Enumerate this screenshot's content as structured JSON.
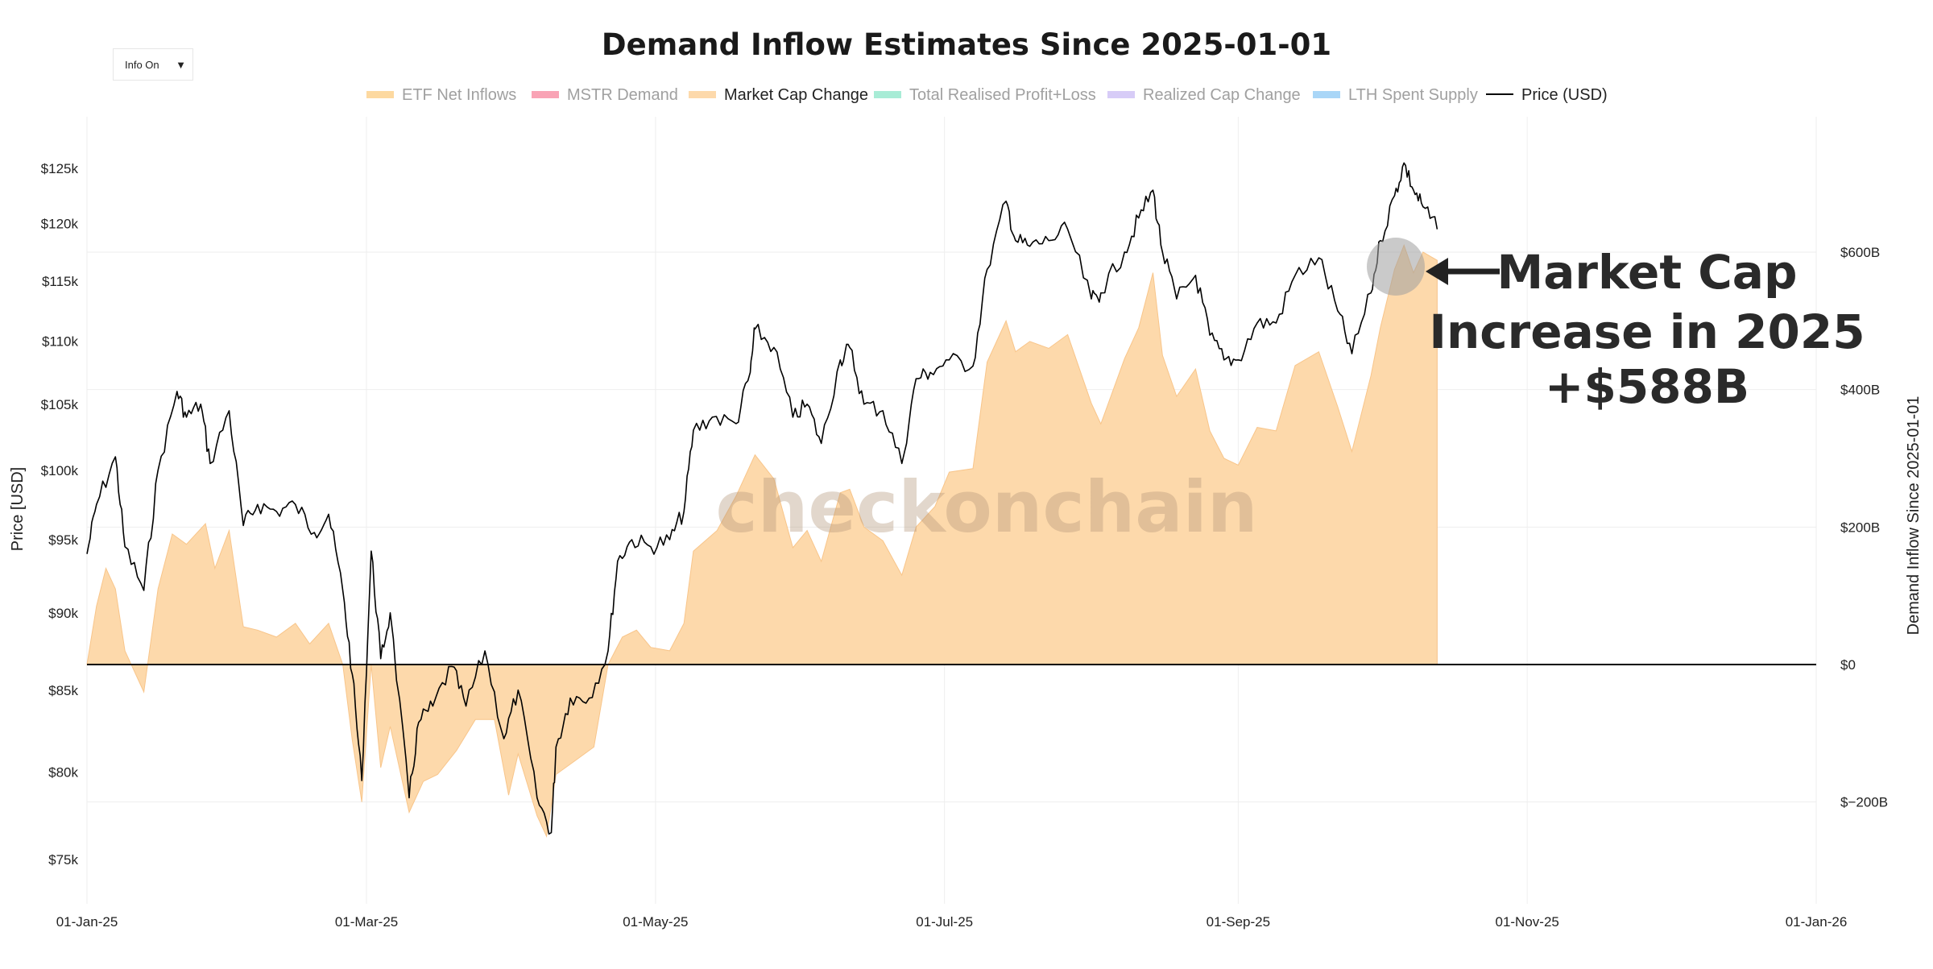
{
  "controls": {
    "info_toggle": "Info On",
    "caret": "▼"
  },
  "annotation": {
    "lines": [
      "Market Cap",
      "Increase in 2025",
      "+$588B"
    ]
  },
  "watermark": "checkonchain",
  "colors": {
    "fill": "#fdd9ab",
    "fill_line": "#f8c58a",
    "price_line": "#000000",
    "zero_line": "#000000",
    "grid": "#eeeeee",
    "highlight_circle": "#9e9e9e",
    "arrow": "#222222"
  },
  "chart_data": {
    "type": "line",
    "title": "Demand Inflow Estimates Since 2025-01-01",
    "legend_placement": "top-center",
    "legend": [
      {
        "name": "ETF Net Inflows",
        "color": "#fdd9a0",
        "active": false
      },
      {
        "name": "MSTR Demand",
        "color": "#f9a3b5",
        "active": false
      },
      {
        "name": "Market Cap Change",
        "color": "#fdd9ab",
        "active": true
      },
      {
        "name": "Total Realised Profit+Loss",
        "color": "#a8ecd6",
        "active": false
      },
      {
        "name": "Realized Cap Change",
        "color": "#d7ccf7",
        "active": false
      },
      {
        "name": "LTH Spent Supply",
        "color": "#a9d6f7",
        "active": false
      },
      {
        "name": "Price (USD)",
        "color": "#000000",
        "active": true,
        "line": true
      }
    ],
    "x_ticks": [
      "01-Jan-25",
      "01-Mar-25",
      "01-May-25",
      "01-Jul-25",
      "01-Sep-25",
      "01-Nov-25",
      "01-Jan-26"
    ],
    "x_range": [
      "2025-01-01",
      "2026-01-01"
    ],
    "left_axis": {
      "label": "Price [USD]",
      "scale": "log",
      "ticks": [
        [
          "$75k",
          75000
        ],
        [
          "$80k",
          80000
        ],
        [
          "$85k",
          85000
        ],
        [
          "$90k",
          90000
        ],
        [
          "$95k",
          95000
        ],
        [
          "$100k",
          100000
        ],
        [
          "$105k",
          105000
        ],
        [
          "$110k",
          110000
        ],
        [
          "$115k",
          115000
        ],
        [
          "$120k",
          120000
        ],
        [
          "$125k",
          125000
        ]
      ]
    },
    "right_axis": {
      "label": "Demand Inflow Since 2025-01-01",
      "unit": "B USD",
      "ticks": [
        [
          "$−200B",
          -200
        ],
        [
          "$0",
          0
        ],
        [
          "$200B",
          200
        ],
        [
          "$400B",
          400
        ],
        [
          "$600B",
          600
        ]
      ]
    },
    "grid": true,
    "series": [
      {
        "name": "Price (USD)",
        "axis": "left",
        "points": [
          [
            "2025-01-01",
            94000
          ],
          [
            "2025-01-03",
            97500
          ],
          [
            "2025-01-07",
            101000
          ],
          [
            "2025-01-09",
            94500
          ],
          [
            "2025-01-13",
            91500
          ],
          [
            "2025-01-16",
            100000
          ],
          [
            "2025-01-20",
            106000
          ],
          [
            "2025-01-22",
            104000
          ],
          [
            "2025-01-25",
            105000
          ],
          [
            "2025-01-27",
            100500
          ],
          [
            "2025-01-31",
            104500
          ],
          [
            "2025-02-03",
            96000
          ],
          [
            "2025-02-06",
            97500
          ],
          [
            "2025-02-10",
            97000
          ],
          [
            "2025-02-14",
            97500
          ],
          [
            "2025-02-18",
            95500
          ],
          [
            "2025-02-21",
            96800
          ],
          [
            "2025-02-24",
            91500
          ],
          [
            "2025-02-26",
            86000
          ],
          [
            "2025-02-28",
            79500
          ],
          [
            "2025-03-02",
            94200
          ],
          [
            "2025-03-04",
            87000
          ],
          [
            "2025-03-06",
            90000
          ],
          [
            "2025-03-10",
            78500
          ],
          [
            "2025-03-12",
            83000
          ],
          [
            "2025-03-15",
            84000
          ],
          [
            "2025-03-19",
            86500
          ],
          [
            "2025-03-22",
            84000
          ],
          [
            "2025-03-26",
            87500
          ],
          [
            "2025-03-30",
            82000
          ],
          [
            "2025-04-02",
            85000
          ],
          [
            "2025-04-06",
            78500
          ],
          [
            "2025-04-09",
            76500
          ],
          [
            "2025-04-10",
            81500
          ],
          [
            "2025-04-13",
            84500
          ],
          [
            "2025-04-17",
            84500
          ],
          [
            "2025-04-21",
            87500
          ],
          [
            "2025-04-23",
            93500
          ],
          [
            "2025-04-26",
            95000
          ],
          [
            "2025-04-30",
            94500
          ],
          [
            "2025-05-04",
            95000
          ],
          [
            "2025-05-07",
            97000
          ],
          [
            "2025-05-09",
            103000
          ],
          [
            "2025-05-13",
            104000
          ],
          [
            "2025-05-18",
            103500
          ],
          [
            "2025-05-21",
            107500
          ],
          [
            "2025-05-22",
            111000
          ],
          [
            "2025-05-26",
            109500
          ],
          [
            "2025-05-30",
            104000
          ],
          [
            "2025-06-02",
            105000
          ],
          [
            "2025-06-05",
            102000
          ],
          [
            "2025-06-09",
            108500
          ],
          [
            "2025-06-11",
            109500
          ],
          [
            "2025-06-14",
            105000
          ],
          [
            "2025-06-18",
            104500
          ],
          [
            "2025-06-22",
            100500
          ],
          [
            "2025-06-25",
            107000
          ],
          [
            "2025-06-28",
            107500
          ],
          [
            "2025-07-02",
            108500
          ],
          [
            "2025-07-07",
            108000
          ],
          [
            "2025-07-10",
            116000
          ],
          [
            "2025-07-14",
            122000
          ],
          [
            "2025-07-16",
            118500
          ],
          [
            "2025-07-19",
            118000
          ],
          [
            "2025-07-23",
            118500
          ],
          [
            "2025-07-27",
            119500
          ],
          [
            "2025-08-01",
            113500
          ],
          [
            "2025-08-03",
            114000
          ],
          [
            "2025-08-08",
            117500
          ],
          [
            "2025-08-11",
            120500
          ],
          [
            "2025-08-14",
            123000
          ],
          [
            "2025-08-16",
            117500
          ],
          [
            "2025-08-19",
            113500
          ],
          [
            "2025-08-23",
            115500
          ],
          [
            "2025-08-26",
            110500
          ],
          [
            "2025-08-29",
            108500
          ],
          [
            "2025-09-01",
            108500
          ],
          [
            "2025-09-05",
            111500
          ],
          [
            "2025-09-09",
            111500
          ],
          [
            "2025-09-13",
            115500
          ],
          [
            "2025-09-18",
            117000
          ],
          [
            "2025-09-22",
            112500
          ],
          [
            "2025-09-25",
            109000
          ],
          [
            "2025-09-29",
            114000
          ],
          [
            "2025-10-01",
            118500
          ],
          [
            "2025-10-04",
            122500
          ],
          [
            "2025-10-06",
            125500
          ],
          [
            "2025-10-08",
            123000
          ],
          [
            "2025-10-10",
            121500
          ],
          [
            "2025-10-13",
            119500
          ]
        ]
      },
      {
        "name": "Market Cap Change",
        "axis": "right",
        "unit": "B USD",
        "points": [
          [
            "2025-01-01",
            0
          ],
          [
            "2025-01-03",
            85
          ],
          [
            "2025-01-05",
            140
          ],
          [
            "2025-01-07",
            110
          ],
          [
            "2025-01-09",
            20
          ],
          [
            "2025-01-13",
            -40
          ],
          [
            "2025-01-16",
            110
          ],
          [
            "2025-01-19",
            190
          ],
          [
            "2025-01-22",
            175
          ],
          [
            "2025-01-26",
            205
          ],
          [
            "2025-01-28",
            140
          ],
          [
            "2025-01-31",
            195
          ],
          [
            "2025-02-03",
            55
          ],
          [
            "2025-02-06",
            50
          ],
          [
            "2025-02-10",
            40
          ],
          [
            "2025-02-14",
            60
          ],
          [
            "2025-02-17",
            30
          ],
          [
            "2025-02-21",
            60
          ],
          [
            "2025-02-24",
            0
          ],
          [
            "2025-02-26",
            -110
          ],
          [
            "2025-02-28",
            -200
          ],
          [
            "2025-03-02",
            0
          ],
          [
            "2025-03-04",
            -150
          ],
          [
            "2025-03-06",
            -90
          ],
          [
            "2025-03-10",
            -215
          ],
          [
            "2025-03-13",
            -170
          ],
          [
            "2025-03-16",
            -160
          ],
          [
            "2025-03-20",
            -125
          ],
          [
            "2025-03-24",
            -80
          ],
          [
            "2025-03-28",
            -80
          ],
          [
            "2025-03-31",
            -190
          ],
          [
            "2025-04-02",
            -130
          ],
          [
            "2025-04-06",
            -220
          ],
          [
            "2025-04-08",
            -250
          ],
          [
            "2025-04-10",
            -160
          ],
          [
            "2025-04-14",
            -140
          ],
          [
            "2025-04-18",
            -120
          ],
          [
            "2025-04-21",
            0
          ],
          [
            "2025-04-24",
            40
          ],
          [
            "2025-04-27",
            50
          ],
          [
            "2025-04-30",
            25
          ],
          [
            "2025-05-04",
            20
          ],
          [
            "2025-05-07",
            60
          ],
          [
            "2025-05-09",
            165
          ],
          [
            "2025-05-14",
            195
          ],
          [
            "2025-05-18",
            245
          ],
          [
            "2025-05-22",
            305
          ],
          [
            "2025-05-26",
            270
          ],
          [
            "2025-05-30",
            170
          ],
          [
            "2025-06-02",
            195
          ],
          [
            "2025-06-05",
            150
          ],
          [
            "2025-06-09",
            250
          ],
          [
            "2025-06-11",
            255
          ],
          [
            "2025-06-14",
            200
          ],
          [
            "2025-06-18",
            180
          ],
          [
            "2025-06-22",
            130
          ],
          [
            "2025-06-25",
            200
          ],
          [
            "2025-06-29",
            230
          ],
          [
            "2025-07-02",
            280
          ],
          [
            "2025-07-07",
            285
          ],
          [
            "2025-07-10",
            440
          ],
          [
            "2025-07-14",
            500
          ],
          [
            "2025-07-16",
            455
          ],
          [
            "2025-07-19",
            470
          ],
          [
            "2025-07-23",
            460
          ],
          [
            "2025-07-27",
            480
          ],
          [
            "2025-08-01",
            380
          ],
          [
            "2025-08-03",
            350
          ],
          [
            "2025-08-08",
            445
          ],
          [
            "2025-08-11",
            490
          ],
          [
            "2025-08-14",
            570
          ],
          [
            "2025-08-16",
            450
          ],
          [
            "2025-08-19",
            390
          ],
          [
            "2025-08-23",
            430
          ],
          [
            "2025-08-26",
            340
          ],
          [
            "2025-08-29",
            300
          ],
          [
            "2025-09-01",
            290
          ],
          [
            "2025-09-05",
            345
          ],
          [
            "2025-09-09",
            340
          ],
          [
            "2025-09-13",
            435
          ],
          [
            "2025-09-18",
            455
          ],
          [
            "2025-09-22",
            375
          ],
          [
            "2025-09-25",
            310
          ],
          [
            "2025-09-29",
            420
          ],
          [
            "2025-10-01",
            490
          ],
          [
            "2025-10-04",
            575
          ],
          [
            "2025-10-06",
            610
          ],
          [
            "2025-10-08",
            570
          ],
          [
            "2025-10-10",
            600
          ],
          [
            "2025-10-13",
            588
          ]
        ]
      }
    ]
  }
}
